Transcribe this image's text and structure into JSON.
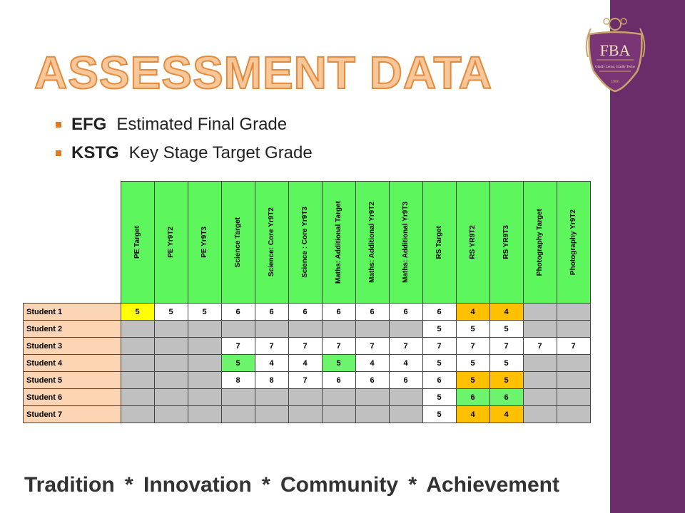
{
  "title": "ASSESSMENT DATA",
  "bullets": [
    {
      "abbr": "EFG",
      "text": "Estimated Final Grade"
    },
    {
      "abbr": "KSTG",
      "text": "Key Stage Target Grade"
    }
  ],
  "logo": {
    "initials": "FBA",
    "motto": "Gladly Lerne, Gladly Teche",
    "year": "1906"
  },
  "grid": {
    "columns": [
      "PE Target",
      "PE Yr9T2",
      "PE Yr9T3",
      "Science Target",
      "Science: Core Yr9T2",
      "Science : Core Yr9T3",
      "Maths: Additional Target",
      "Maths: Additional Yr9T2",
      "Maths: Additional Yr9T3",
      "RS Target",
      "RS YR9T2",
      "RS YR9T3",
      "Photography Target",
      "Photography Yr9T2"
    ],
    "rows": [
      {
        "label": "Student 1",
        "cells": [
          [
            "5",
            "yellow"
          ],
          [
            "5",
            "white"
          ],
          [
            "5",
            "white"
          ],
          [
            "6",
            "white"
          ],
          [
            "6",
            "white"
          ],
          [
            "6",
            "white"
          ],
          [
            "6",
            "white"
          ],
          [
            "6",
            "white"
          ],
          [
            "6",
            "white"
          ],
          [
            "6",
            "white"
          ],
          [
            "4",
            "orange"
          ],
          [
            "4",
            "orange"
          ],
          [
            "",
            "blank"
          ],
          [
            "",
            "blank"
          ]
        ]
      },
      {
        "label": "Student 2",
        "cells": [
          [
            "",
            "blank"
          ],
          [
            "",
            "blank"
          ],
          [
            "",
            "blank"
          ],
          [
            "",
            "blank"
          ],
          [
            "",
            "blank"
          ],
          [
            "",
            "blank"
          ],
          [
            "",
            "blank"
          ],
          [
            "",
            "blank"
          ],
          [
            "",
            "blank"
          ],
          [
            "5",
            "white"
          ],
          [
            "5",
            "white"
          ],
          [
            "5",
            "white"
          ],
          [
            "",
            "blank"
          ],
          [
            "",
            "blank"
          ]
        ]
      },
      {
        "label": "Student 3",
        "cells": [
          [
            "",
            "blank"
          ],
          [
            "",
            "blank"
          ],
          [
            "",
            "blank"
          ],
          [
            "7",
            "white"
          ],
          [
            "7",
            "white"
          ],
          [
            "7",
            "white"
          ],
          [
            "7",
            "white"
          ],
          [
            "7",
            "white"
          ],
          [
            "7",
            "white"
          ],
          [
            "7",
            "white"
          ],
          [
            "7",
            "white"
          ],
          [
            "7",
            "white"
          ],
          [
            "7",
            "white"
          ],
          [
            "7",
            "white"
          ]
        ]
      },
      {
        "label": "Student 4",
        "cells": [
          [
            "",
            "blank"
          ],
          [
            "",
            "blank"
          ],
          [
            "",
            "blank"
          ],
          [
            "5",
            "green"
          ],
          [
            "4",
            "white"
          ],
          [
            "4",
            "white"
          ],
          [
            "5",
            "green"
          ],
          [
            "4",
            "white"
          ],
          [
            "4",
            "white"
          ],
          [
            "5",
            "white"
          ],
          [
            "5",
            "white"
          ],
          [
            "5",
            "white"
          ],
          [
            "",
            "blank"
          ],
          [
            "",
            "blank"
          ]
        ]
      },
      {
        "label": "Student 5",
        "cells": [
          [
            "",
            "blank"
          ],
          [
            "",
            "blank"
          ],
          [
            "",
            "blank"
          ],
          [
            "8",
            "white"
          ],
          [
            "8",
            "white"
          ],
          [
            "7",
            "white"
          ],
          [
            "6",
            "white"
          ],
          [
            "6",
            "white"
          ],
          [
            "6",
            "white"
          ],
          [
            "6",
            "white"
          ],
          [
            "5",
            "orange"
          ],
          [
            "5",
            "orange"
          ],
          [
            "",
            "blank"
          ],
          [
            "",
            "blank"
          ]
        ]
      },
      {
        "label": "Student 6",
        "cells": [
          [
            "",
            "blank"
          ],
          [
            "",
            "blank"
          ],
          [
            "",
            "blank"
          ],
          [
            "",
            "blank"
          ],
          [
            "",
            "blank"
          ],
          [
            "",
            "blank"
          ],
          [
            "",
            "blank"
          ],
          [
            "",
            "blank"
          ],
          [
            "",
            "blank"
          ],
          [
            "5",
            "white"
          ],
          [
            "6",
            "green"
          ],
          [
            "6",
            "green"
          ],
          [
            "",
            "blank"
          ],
          [
            "",
            "blank"
          ]
        ]
      },
      {
        "label": "Student 7",
        "cells": [
          [
            "",
            "blank"
          ],
          [
            "",
            "blank"
          ],
          [
            "",
            "blank"
          ],
          [
            "",
            "blank"
          ],
          [
            "",
            "blank"
          ],
          [
            "",
            "blank"
          ],
          [
            "",
            "blank"
          ],
          [
            "",
            "blank"
          ],
          [
            "",
            "blank"
          ],
          [
            "5",
            "white"
          ],
          [
            "4",
            "orange"
          ],
          [
            "4",
            "orange"
          ],
          [
            "",
            "blank"
          ],
          [
            "",
            "blank"
          ]
        ]
      }
    ]
  },
  "tagline": "Tradition *  Innovation  *  Community  *  Achievement",
  "colors": {
    "sidebar": "#6b2d6a",
    "accent": "#e07a20",
    "title_fill": "#f7c79a",
    "header_green": "#5df75d",
    "row_label": "#fcd5b4"
  }
}
